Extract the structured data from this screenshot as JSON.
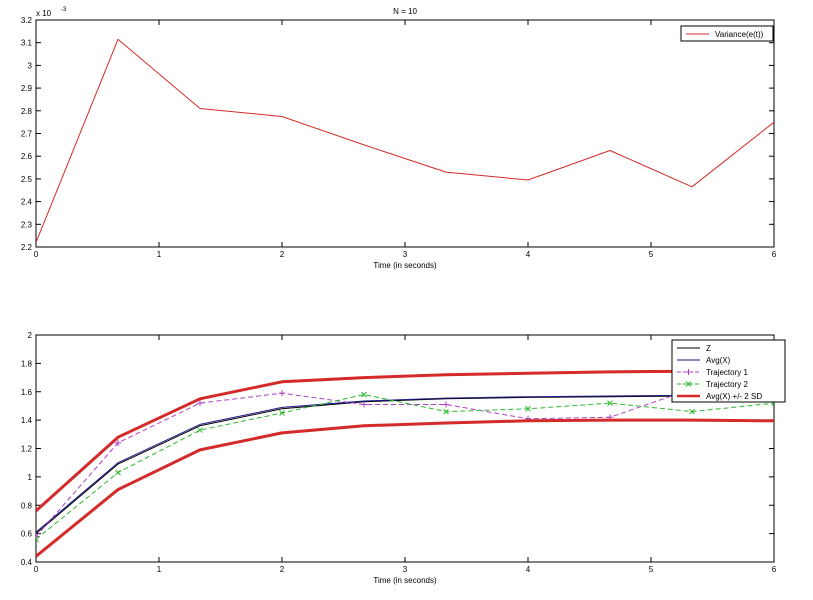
{
  "chart_data": [
    {
      "type": "line",
      "title": "N = 10",
      "xlabel": "Time (in seconds)",
      "ylabel": "",
      "y_exponent": "x 10",
      "y_exponent_power": "-3",
      "xlim": [
        0,
        6
      ],
      "ylim": [
        2.2,
        3.2
      ],
      "xticks": [
        "0",
        "1",
        "2",
        "3",
        "4",
        "5",
        "6"
      ],
      "yticks": [
        "2.2",
        "2.3",
        "2.4",
        "2.5",
        "2.6",
        "2.7",
        "2.8",
        "2.9",
        "3",
        "3.1",
        "3.2"
      ],
      "grid": false,
      "legend_position": "top-right",
      "series": [
        {
          "name": "Variance(e(t))",
          "color": "#d42a2a",
          "style": "solid",
          "width": 1,
          "x": [
            0,
            0.667,
            1.333,
            2,
            2.667,
            3.333,
            4,
            4.667,
            5.333,
            6
          ],
          "y": [
            2.22,
            3.115,
            2.81,
            2.775,
            2.65,
            2.53,
            2.495,
            2.625,
            2.465,
            2.75
          ]
        }
      ]
    },
    {
      "type": "line",
      "title": "",
      "xlabel": "Time (in seconds)",
      "ylabel": "",
      "xlim": [
        0,
        6
      ],
      "ylim": [
        0.4,
        2
      ],
      "xticks": [
        "0",
        "1",
        "2",
        "3",
        "4",
        "5",
        "6"
      ],
      "yticks": [
        "0.4",
        "0.6",
        "0.8",
        "1",
        "1.2",
        "1.4",
        "1.6",
        "1.8",
        "2"
      ],
      "grid": false,
      "legend_position": "top-right",
      "series": [
        {
          "name": "Z",
          "color": "#000000",
          "style": "solid",
          "width": 1,
          "x": [
            0,
            0.667,
            1.333,
            2,
            2.667,
            3.333,
            4,
            4.667,
            5.333,
            6
          ],
          "y": [
            0.6,
            1.09,
            1.36,
            1.48,
            1.53,
            1.55,
            1.56,
            1.565,
            1.57,
            1.57
          ]
        },
        {
          "name": "Avg(X)",
          "color": "#1b1b8c",
          "style": "solid",
          "width": 1,
          "x": [
            0,
            0.667,
            1.333,
            2,
            2.667,
            3.333,
            4,
            4.667,
            5.333,
            6
          ],
          "y": [
            0.61,
            1.1,
            1.37,
            1.49,
            1.535,
            1.555,
            1.565,
            1.57,
            1.575,
            1.575
          ]
        },
        {
          "name": "Trajectory 1",
          "color": "#b040c8",
          "style": "dashed",
          "marker": "plus",
          "width": 1,
          "x": [
            0,
            0.667,
            1.333,
            2,
            2.667,
            3.333,
            4,
            4.667,
            5.333,
            6
          ],
          "y": [
            0.58,
            1.24,
            1.52,
            1.59,
            1.51,
            1.51,
            1.41,
            1.42,
            1.62,
            1.63
          ]
        },
        {
          "name": "Trajectory 2",
          "color": "#2bb92b",
          "style": "dashed",
          "marker": "x",
          "width": 1,
          "x": [
            0,
            0.667,
            1.333,
            2,
            2.667,
            3.333,
            4,
            4.667,
            5.333,
            6
          ],
          "y": [
            0.56,
            1.03,
            1.33,
            1.45,
            1.58,
            1.46,
            1.48,
            1.52,
            1.46,
            1.52
          ]
        },
        {
          "name": "Avg(X) +/- 2 SD",
          "color": "#d42a2a",
          "style": "solid",
          "width": 3,
          "x": [
            0,
            0.667,
            1.333,
            2,
            2.667,
            3.333,
            4,
            4.667,
            5.333,
            6
          ],
          "y": [
            0.76,
            1.28,
            1.55,
            1.67,
            1.7,
            1.72,
            1.73,
            1.74,
            1.745,
            1.75
          ]
        },
        {
          "name": "",
          "color": "#d42a2a",
          "style": "solid",
          "width": 3,
          "x": [
            0,
            0.667,
            1.333,
            2,
            2.667,
            3.333,
            4,
            4.667,
            5.333,
            6
          ],
          "y": [
            0.44,
            0.91,
            1.19,
            1.31,
            1.36,
            1.38,
            1.395,
            1.4,
            1.4,
            1.395
          ]
        }
      ]
    }
  ]
}
